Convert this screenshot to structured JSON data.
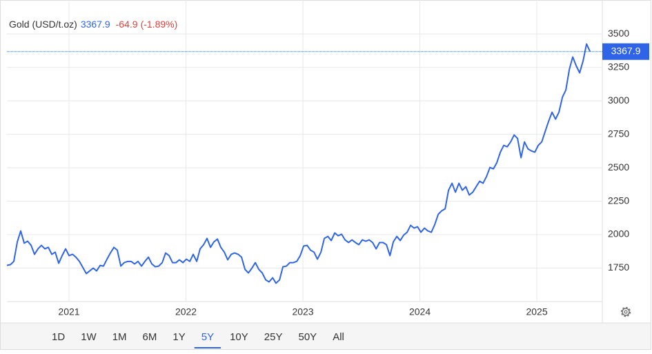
{
  "chart_data": {
    "type": "line",
    "series": [
      {
        "name": "Gold (USD/t.oz)",
        "color": "#2f64e8",
        "values": [
          1770,
          1776,
          1800,
          1946,
          2028,
          1936,
          1951,
          1920,
          1853,
          1894,
          1920,
          1894,
          1905,
          1853,
          1869,
          1786,
          1843,
          1894,
          1843,
          1853,
          1832,
          1800,
          1755,
          1709,
          1729,
          1750,
          1729,
          1770,
          1765,
          1817,
          1863,
          1905,
          1884,
          1765,
          1791,
          1800,
          1800,
          1781,
          1800,
          1765,
          1800,
          1832,
          1781,
          1760,
          1765,
          1791,
          1863,
          1843,
          1791,
          1791,
          1812,
          1791,
          1817,
          1800,
          1853,
          1800,
          1894,
          1925,
          1972,
          1905,
          1946,
          1967,
          1905,
          1869,
          1812,
          1853,
          1863,
          1853,
          1832,
          1740,
          1714,
          1750,
          1791,
          1740,
          1714,
          1662,
          1647,
          1678,
          1637,
          1662,
          1760,
          1765,
          1791,
          1791,
          1800,
          1843,
          1915,
          1920,
          1884,
          1869,
          1817,
          1869,
          1972,
          1987,
          1956,
          2013,
          1992,
          2003,
          1961,
          1941,
          1961,
          1941,
          1925,
          1961,
          1951,
          1961,
          1941,
          1894,
          1941,
          1941,
          1925,
          1843,
          1946,
          1987,
          1956,
          1997,
          2018,
          2070,
          2049,
          2059,
          2018,
          2049,
          2028,
          2018,
          2075,
          2152,
          2178,
          2193,
          2332,
          2384,
          2317,
          2384,
          2332,
          2358,
          2296,
          2317,
          2358,
          2399,
          2384,
          2435,
          2502,
          2492,
          2538,
          2616,
          2667,
          2657,
          2693,
          2745,
          2719,
          2575,
          2693,
          2641,
          2626,
          2616,
          2667,
          2693,
          2770,
          2848,
          2915,
          2863,
          2915,
          3028,
          3080,
          3235,
          3328,
          3261,
          3209,
          3300,
          3425,
          3367.9
        ]
      }
    ],
    "x": [
      2020.469,
      2020.499,
      2020.528,
      2020.558,
      2020.587,
      2020.617,
      2020.646,
      2020.676,
      2020.705,
      2020.735,
      2020.764,
      2020.794,
      2020.823,
      2020.853,
      2020.882,
      2020.912,
      2020.941,
      2020.971,
      2021.0,
      2021.03,
      2021.059,
      2021.089,
      2021.118,
      2021.148,
      2021.177,
      2021.207,
      2021.236,
      2021.266,
      2021.295,
      2021.325,
      2021.354,
      2021.384,
      2021.413,
      2021.443,
      2021.472,
      2021.502,
      2021.531,
      2021.561,
      2021.59,
      2021.62,
      2021.649,
      2021.679,
      2021.708,
      2021.738,
      2021.767,
      2021.797,
      2021.826,
      2021.856,
      2021.885,
      2021.915,
      2021.944,
      2021.974,
      2022.003,
      2022.033,
      2022.062,
      2022.092,
      2022.121,
      2022.151,
      2022.18,
      2022.21,
      2022.239,
      2022.269,
      2022.298,
      2022.328,
      2022.357,
      2022.387,
      2022.416,
      2022.446,
      2022.475,
      2022.505,
      2022.534,
      2022.564,
      2022.593,
      2022.623,
      2022.652,
      2022.682,
      2022.711,
      2022.741,
      2022.77,
      2022.8,
      2022.829,
      2022.859,
      2022.888,
      2022.918,
      2022.947,
      2022.977,
      2023.006,
      2023.036,
      2023.065,
      2023.095,
      2023.124,
      2023.154,
      2023.183,
      2023.213,
      2023.242,
      2023.272,
      2023.301,
      2023.331,
      2023.36,
      2023.39,
      2023.419,
      2023.449,
      2023.478,
      2023.508,
      2023.537,
      2023.567,
      2023.596,
      2023.626,
      2023.655,
      2023.685,
      2023.714,
      2023.744,
      2023.773,
      2023.803,
      2023.832,
      2023.862,
      2023.891,
      2023.921,
      2023.95,
      2023.98,
      2024.009,
      2024.039,
      2024.068,
      2024.098,
      2024.127,
      2024.157,
      2024.186,
      2024.216,
      2024.245,
      2024.275,
      2024.304,
      2024.334,
      2024.363,
      2024.393,
      2024.422,
      2024.452,
      2024.481,
      2024.511,
      2024.54,
      2024.57,
      2024.599,
      2024.629,
      2024.658,
      2024.688,
      2024.717,
      2024.747,
      2024.776,
      2024.806,
      2024.835,
      2024.865,
      2024.894,
      2024.924,
      2024.953,
      2024.983,
      2025.012,
      2025.042,
      2025.071,
      2025.101,
      2025.13,
      2025.16,
      2025.189,
      2025.219,
      2025.248,
      2025.278,
      2025.307,
      2025.337,
      2025.366,
      2025.396,
      2025.425,
      2025.455
    ],
    "xlim": [
      2020.469,
      2025.56
    ],
    "xticks": [
      2021,
      2022,
      2023,
      2024,
      2025
    ],
    "ylim": [
      1500,
      3640
    ],
    "yticks": [
      1750,
      2000,
      2250,
      2500,
      2750,
      3000,
      3250,
      3500
    ],
    "grid": true,
    "change": -64.9,
    "change_pct": {
      "value": -1.89,
      "label": "(-1.89%)"
    },
    "change_color": "#e0403a"
  },
  "range_selector": {
    "options": [
      "1D",
      "1W",
      "1M",
      "6M",
      "1Y",
      "5Y",
      "10Y",
      "25Y",
      "50Y",
      "All"
    ],
    "selected": "5Y"
  }
}
